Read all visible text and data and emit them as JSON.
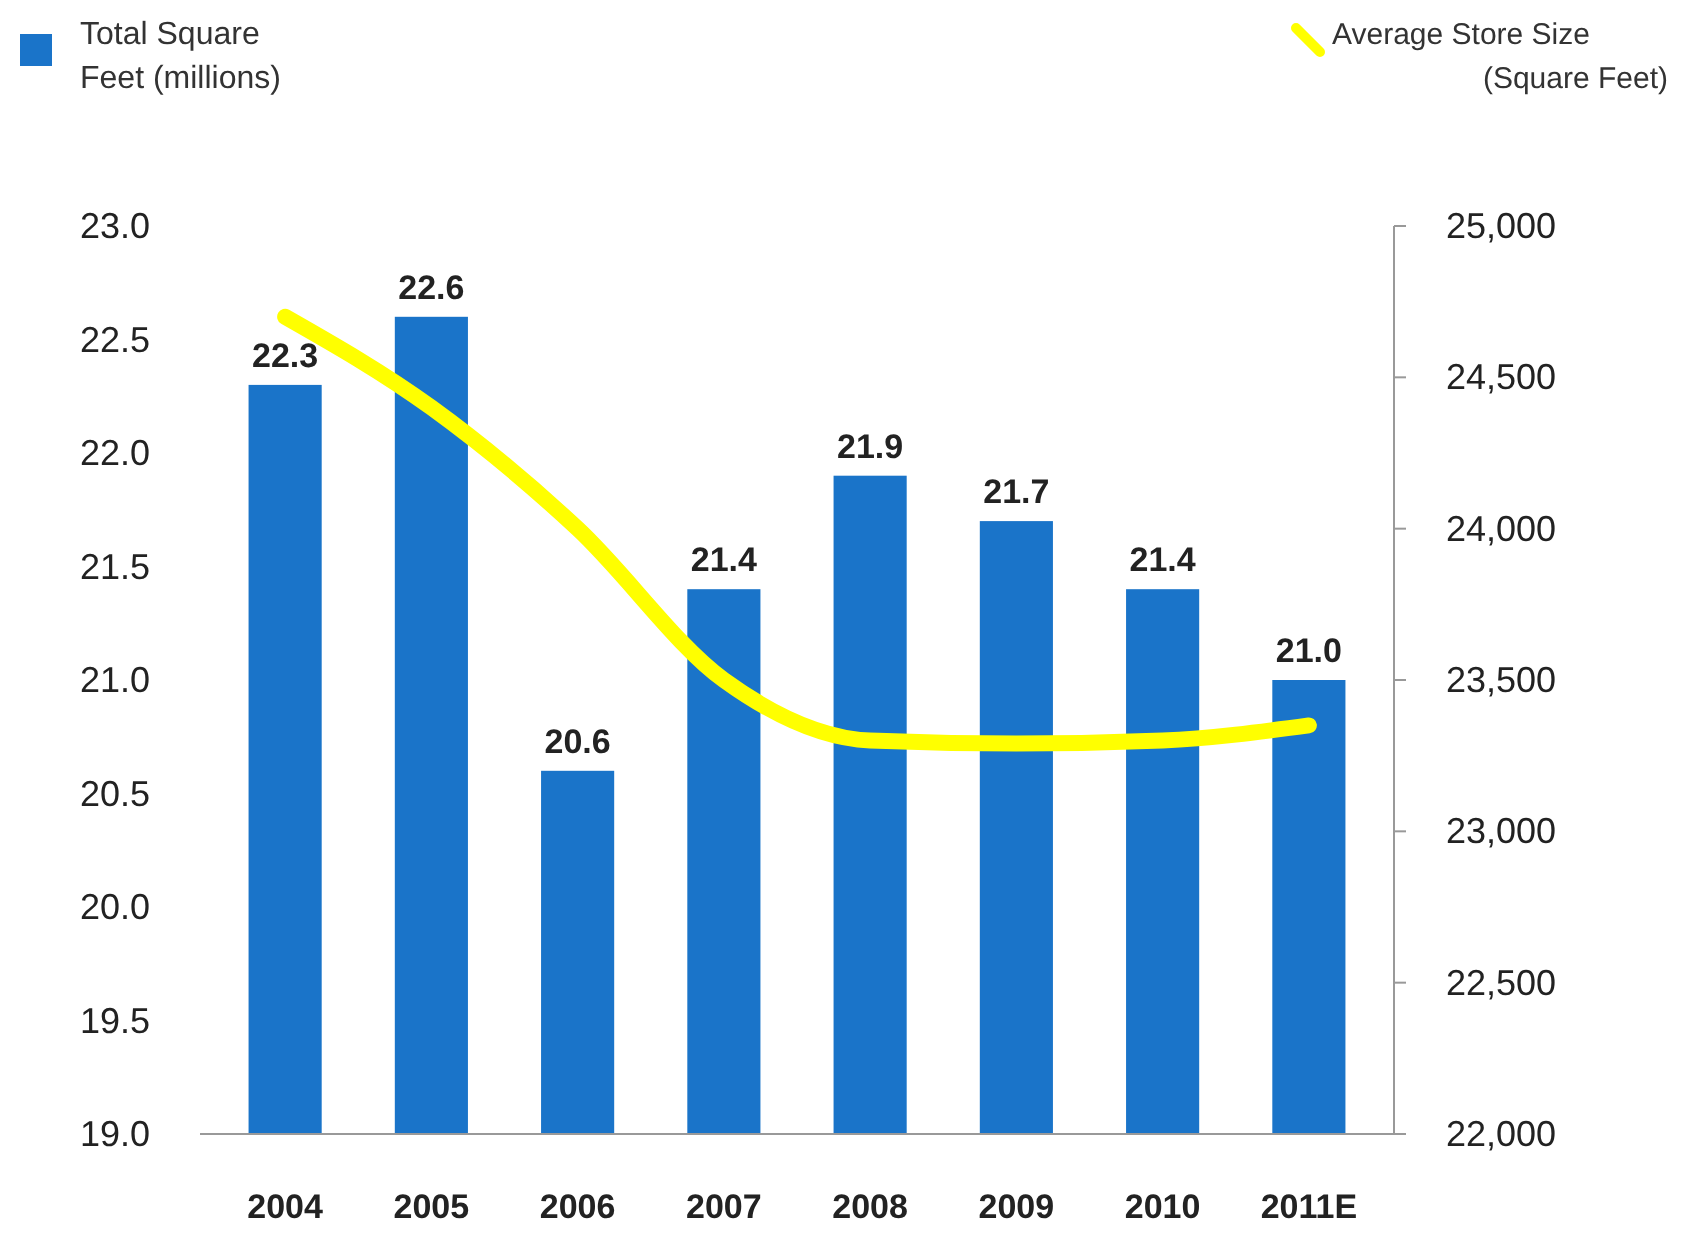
{
  "chart_data": {
    "type": "bar",
    "categories": [
      "2004",
      "2005",
      "2006",
      "2007",
      "2008",
      "2009",
      "2010",
      "2011E"
    ],
    "series": [
      {
        "name": "Total Square Feet (millions)",
        "color": "#1a74c9",
        "values": [
          22.3,
          22.6,
          20.6,
          21.4,
          21.9,
          21.7,
          21.4,
          21.0
        ],
        "value_labels": [
          "22.3",
          "22.6",
          "20.6",
          "21.4",
          "21.9",
          "21.7",
          "21.4",
          "21.0"
        ]
      },
      {
        "name": "Average Store Size (Square Feet)",
        "type": "line",
        "axis": "y2",
        "color": "#ffff00",
        "values": [
          24700,
          24400,
          24000,
          23500,
          23300,
          23290,
          23300,
          23350
        ]
      }
    ],
    "ylim": [
      19,
      23
    ],
    "yticks": [
      {
        "value": 19,
        "label": "19.0"
      },
      {
        "value": 19.5,
        "label": "19.5"
      },
      {
        "value": 20,
        "label": "20.0"
      },
      {
        "value": 20.5,
        "label": "20.5"
      },
      {
        "value": 21,
        "label": "21.0"
      },
      {
        "value": 21.5,
        "label": "21.5"
      },
      {
        "value": 22,
        "label": "22.0"
      },
      {
        "value": 22.5,
        "label": "22.5"
      },
      {
        "value": 23,
        "label": "23.0"
      }
    ],
    "y2lim": [
      22000,
      25000
    ],
    "y2ticks": [
      {
        "value": 22000,
        "label": "22,000"
      },
      {
        "value": 22500,
        "label": "22,500"
      },
      {
        "value": 23000,
        "label": "23,000"
      },
      {
        "value": 23500,
        "label": "23,500"
      },
      {
        "value": 24000,
        "label": "24,000"
      },
      {
        "value": 24500,
        "label": "24,500"
      },
      {
        "value": 25000,
        "label": "25,000"
      }
    ],
    "legend": "top",
    "grid": false,
    "line_style": "solid",
    "marker": "none"
  }
}
